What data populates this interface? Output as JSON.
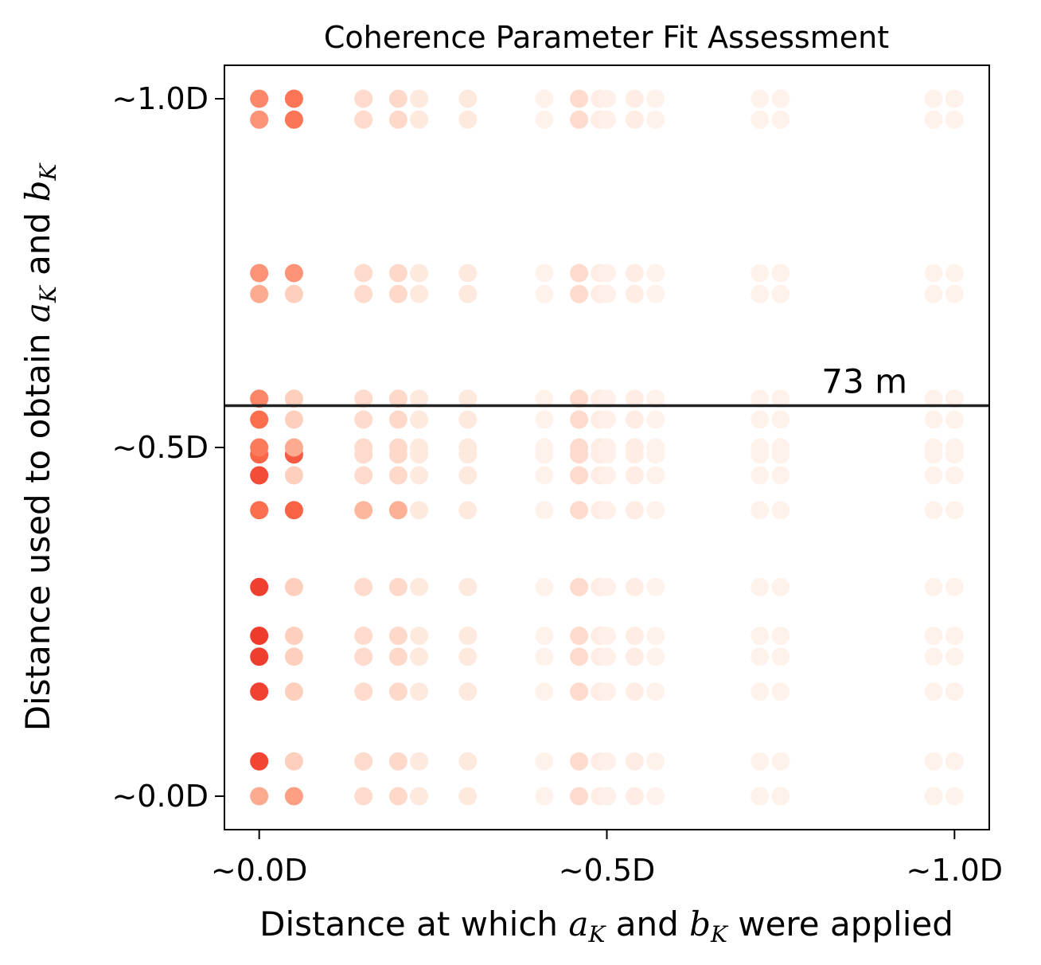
{
  "chart_data": {
    "type": "scatter",
    "title": "Coherence Parameter Fit Assessment",
    "xlabel": {
      "prefix": "Distance at which ",
      "var1": "a",
      "sub1": "K",
      "middle": " and ",
      "var2": "b",
      "sub2": "K",
      "suffix": " were applied"
    },
    "ylabel": {
      "prefix": "Distance used to obtain ",
      "var1": "a",
      "sub1": "K",
      "middle": " and ",
      "var2": "b",
      "sub2": "K"
    },
    "xlim": [
      -0.05,
      1.05
    ],
    "ylim": [
      -0.048,
      1.048
    ],
    "xticks": [
      {
        "value": 0.0,
        "label": "~0.0D"
      },
      {
        "value": 0.5,
        "label": "~0.5D"
      },
      {
        "value": 1.0,
        "label": "~1.0D"
      }
    ],
    "yticks": [
      {
        "value": 0.0,
        "label": "~0.0D"
      },
      {
        "value": 0.5,
        "label": "~0.5D"
      },
      {
        "value": 1.0,
        "label": "~1.0D"
      }
    ],
    "grid": false,
    "reference_line": {
      "y": 0.56,
      "label": "73 m",
      "color": "#222222"
    },
    "colormap": [
      "#fff5f0",
      "#fcbba1",
      "#fb6a4a",
      "#ef3b2c"
    ],
    "x_values": [
      0.0,
      0.05,
      0.15,
      0.2,
      0.23,
      0.3,
      0.41,
      0.46,
      0.49,
      0.5,
      0.54,
      0.57,
      0.72,
      0.75,
      0.97,
      1.0
    ],
    "y_values": [
      0.0,
      0.05,
      0.15,
      0.2,
      0.23,
      0.3,
      0.41,
      0.46,
      0.49,
      0.5,
      0.54,
      0.57,
      0.72,
      0.75,
      0.97,
      1.0
    ],
    "column_base": [
      0.25,
      0.22,
      0.15,
      0.16,
      0.07,
      0.07,
      0.02,
      0.15,
      0.05,
      0.03,
      0.05,
      0.02,
      0.02,
      0.02,
      0.02,
      0.02
    ],
    "special": [
      {
        "x": 0.0,
        "y": 0.0,
        "v": 0.4
      },
      {
        "x": 0.0,
        "y": 0.05,
        "v": 0.92
      },
      {
        "x": 0.0,
        "y": 0.15,
        "v": 0.95
      },
      {
        "x": 0.0,
        "y": 0.2,
        "v": 0.98
      },
      {
        "x": 0.0,
        "y": 0.23,
        "v": 1.0
      },
      {
        "x": 0.0,
        "y": 0.3,
        "v": 0.97
      },
      {
        "x": 0.0,
        "y": 0.41,
        "v": 0.65
      },
      {
        "x": 0.0,
        "y": 0.46,
        "v": 0.88
      },
      {
        "x": 0.0,
        "y": 0.49,
        "v": 0.7
      },
      {
        "x": 0.0,
        "y": 0.5,
        "v": 0.6
      },
      {
        "x": 0.0,
        "y": 0.54,
        "v": 0.65
      },
      {
        "x": 0.0,
        "y": 0.57,
        "v": 0.55
      },
      {
        "x": 0.0,
        "y": 0.72,
        "v": 0.4
      },
      {
        "x": 0.0,
        "y": 0.75,
        "v": 0.5
      },
      {
        "x": 0.0,
        "y": 0.97,
        "v": 0.5
      },
      {
        "x": 0.0,
        "y": 1.0,
        "v": 0.55
      },
      {
        "x": 0.05,
        "y": 0.0,
        "v": 0.45
      },
      {
        "x": 0.05,
        "y": 0.41,
        "v": 0.72
      },
      {
        "x": 0.05,
        "y": 0.49,
        "v": 0.78
      },
      {
        "x": 0.05,
        "y": 0.5,
        "v": 0.4
      },
      {
        "x": 0.05,
        "y": 0.75,
        "v": 0.5
      },
      {
        "x": 0.05,
        "y": 0.97,
        "v": 0.62
      },
      {
        "x": 0.05,
        "y": 1.0,
        "v": 0.62
      },
      {
        "x": 0.15,
        "y": 0.41,
        "v": 0.35
      },
      {
        "x": 0.2,
        "y": 0.41,
        "v": 0.38
      }
    ]
  }
}
